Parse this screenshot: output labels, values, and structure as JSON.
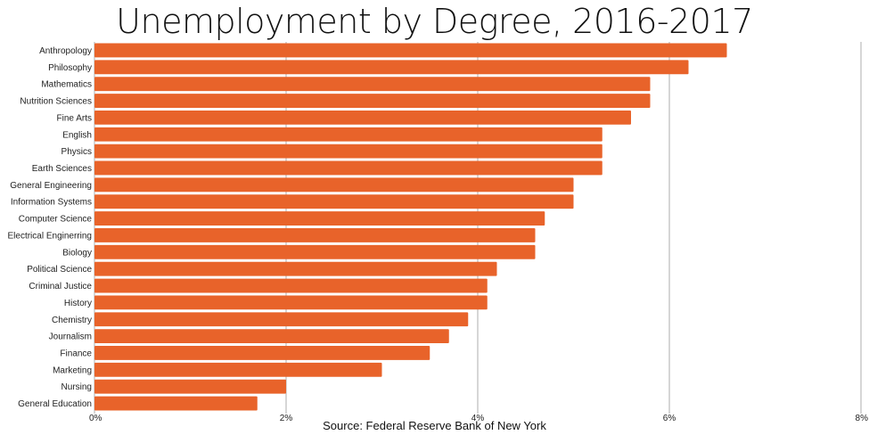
{
  "chart_data": {
    "type": "bar",
    "orientation": "horizontal",
    "title": "Unemployment by Degree, 2016-2017",
    "source": "Source: Federal Reserve Bank of New York",
    "categories": [
      "Anthropology",
      "Philosophy",
      "Mathematics",
      "Nutrition Sciences",
      "Fine Arts",
      "English",
      "Physics",
      "Earth Sciences",
      "General Engineering",
      "Information Systems",
      "Computer Science",
      "Electrical Enginerring",
      "Biology",
      "Political Science",
      "Criminal Justice",
      "History",
      "Chemistry",
      "Journalism",
      "Finance",
      "Marketing",
      "Nursing",
      "General Education"
    ],
    "values": [
      6.6,
      6.2,
      5.8,
      5.8,
      5.6,
      5.3,
      5.3,
      5.3,
      5.0,
      5.0,
      4.7,
      4.6,
      4.6,
      4.2,
      4.1,
      4.1,
      3.9,
      3.7,
      3.5,
      3.0,
      2.0,
      1.7
    ],
    "xlim": [
      0,
      8
    ],
    "xticks": [
      0,
      2,
      4,
      6,
      8
    ],
    "xtick_labels": [
      "0%",
      "2%",
      "4%",
      "6%",
      "8%"
    ],
    "grid": true,
    "bar_color": "#e8632a",
    "grid_color": "#c8c8c8"
  }
}
